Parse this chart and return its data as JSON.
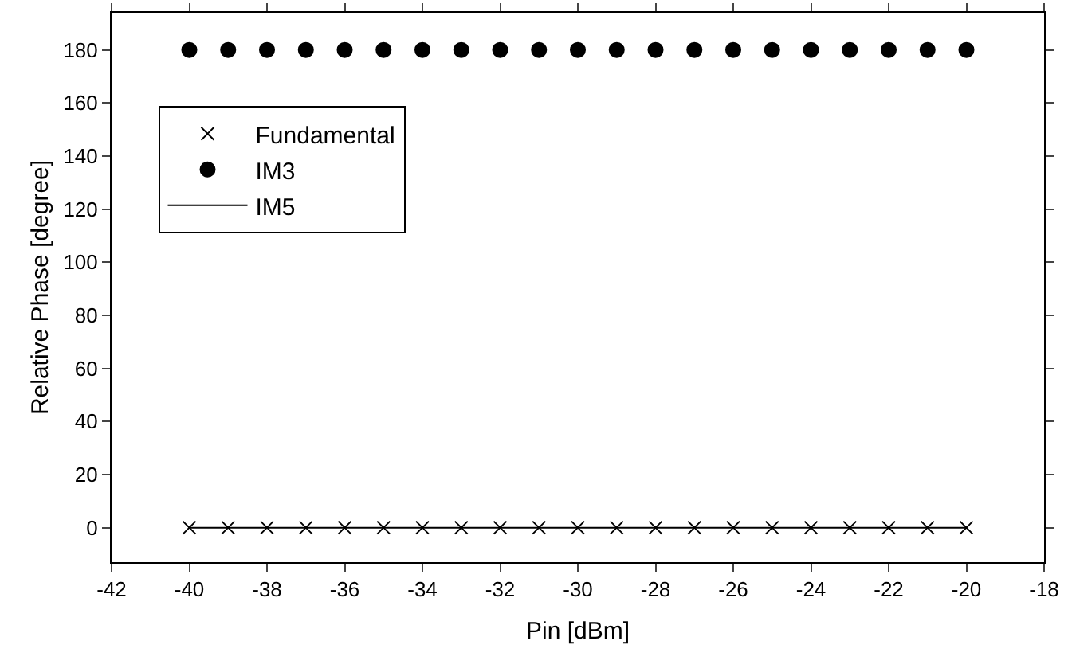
{
  "chart_data": {
    "type": "scatter",
    "xlabel": "Pin [dBm]",
    "ylabel": "Relative Phase [degree]",
    "x": [
      -40,
      -39,
      -38,
      -37,
      -36,
      -35,
      -34,
      -33,
      -32,
      -31,
      -30,
      -29,
      -28,
      -27,
      -26,
      -25,
      -24,
      -23,
      -22,
      -21,
      -20
    ],
    "series": [
      {
        "name": "Fundamental",
        "color": "#000000",
        "marker": "cross",
        "values": [
          0,
          0,
          0,
          0,
          0,
          0,
          0,
          0,
          0,
          0,
          0,
          0,
          0,
          0,
          0,
          0,
          0,
          0,
          0,
          0,
          0
        ]
      },
      {
        "name": "IM3",
        "color": "#000000",
        "marker": "circle",
        "values": [
          180,
          180,
          180,
          180,
          180,
          180,
          180,
          180,
          180,
          180,
          180,
          180,
          180,
          180,
          180,
          180,
          180,
          180,
          180,
          180,
          180
        ]
      },
      {
        "name": "IM5",
        "type": "line",
        "color": "#000000",
        "marker": "none",
        "line_style": "solid",
        "values": [
          0,
          0,
          0,
          0,
          0,
          0,
          0,
          0,
          0,
          0,
          0,
          0,
          0,
          0,
          0,
          0,
          0,
          0,
          0,
          0,
          0
        ]
      }
    ],
    "xlim": [
      -42,
      -18
    ],
    "xticks": [
      -42,
      -40,
      -38,
      -36,
      -34,
      -32,
      -30,
      -28,
      -26,
      -24,
      -22,
      -20,
      -18
    ],
    "ylim": [
      -13,
      194
    ],
    "yticks": [
      0,
      20,
      40,
      60,
      80,
      100,
      120,
      140,
      160,
      180
    ],
    "grid": false,
    "legend": "top left"
  }
}
